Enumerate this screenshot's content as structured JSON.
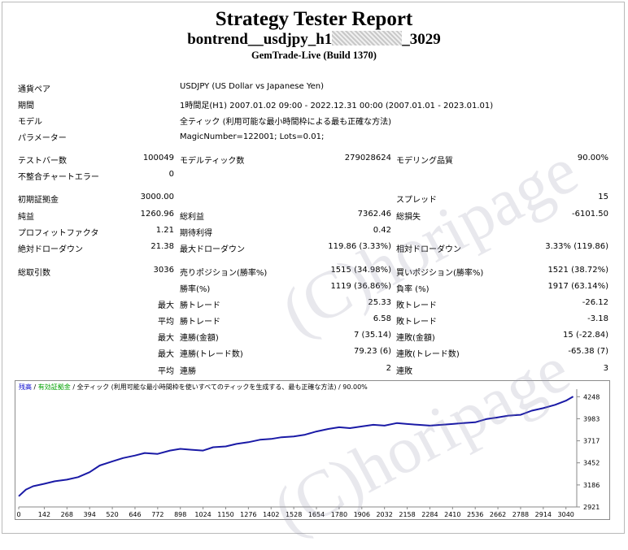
{
  "report": {
    "title": "Strategy Tester Report",
    "ea_name_prefix": "bontrend__usdjpy_h1",
    "ea_name_suffix": "_3029",
    "server": "GemTrade-Live (Build 1370)"
  },
  "info": [
    {
      "label": "通貨ペア",
      "value": "USDJPY (US Dollar vs Japanese Yen)"
    },
    {
      "label": "期間",
      "value": "1時間足(H1) 2007.01.02 09:00 - 2022.12.31 00:00 (2007.01.01 - 2023.01.01)"
    },
    {
      "label": "モデル",
      "value": "全ティック (利用可能な最小時間枠による最も正確な方法)"
    },
    {
      "label": "パラメーター",
      "value": "MagicNumber=122001; Lots=0.01;"
    }
  ],
  "stats": {
    "bars_label": "テストバー数",
    "bars_value": "100049",
    "ticks_label": "モデルティック数",
    "ticks_value": "279028624",
    "quality_label": "モデリング品質",
    "quality_value": "90.00%",
    "mismatch_label": "不整合チャートエラー",
    "mismatch_value": "0",
    "deposit_label": "初期証拠金",
    "deposit_value": "3000.00",
    "spread_label": "スプレッド",
    "spread_value": "15",
    "net_label": "純益",
    "net_value": "1260.96",
    "gross_profit_label": "総利益",
    "gross_profit_value": "7362.46",
    "gross_loss_label": "総損失",
    "gross_loss_value": "-6101.50",
    "pf_label": "プロフィットファクタ",
    "pf_value": "1.21",
    "payoff_label": "期待利得",
    "payoff_value": "0.42",
    "abs_dd_label": "絶対ドローダウン",
    "abs_dd_value": "21.38",
    "max_dd_label": "最大ドローダウン",
    "max_dd_value": "119.86 (3.33%)",
    "rel_dd_label": "相対ドローダウン",
    "rel_dd_value": "3.33% (119.86)",
    "trades_label": "総取引数",
    "trades_value": "3036",
    "short_label": "売りポジション(勝率%)",
    "short_value": "1515 (34.98%)",
    "long_label": "買いポジション(勝率%)",
    "long_value": "1521 (38.72%)",
    "win_rate_label": "勝率(%)",
    "win_rate_value": "1119 (36.86%)",
    "loss_rate_label": "負率 (%)",
    "loss_rate_value": "1917 (63.14%)",
    "max_word": "最大",
    "avg_word": "平均",
    "largest_win_label": "勝トレード",
    "largest_win_value": "25.33",
    "largest_loss_label": "敗トレード",
    "largest_loss_value": "-26.12",
    "avg_win_label": "勝トレード",
    "avg_win_value": "6.58",
    "avg_loss_label": "敗トレード",
    "avg_loss_value": "-3.18",
    "cons_win_amt_label": "連勝(金額)",
    "cons_win_amt_value": "7 (35.14)",
    "cons_loss_amt_label": "連敗(金額)",
    "cons_loss_amt_value": "15 (-22.84)",
    "cons_win_cnt_label": "連勝(トレード数)",
    "cons_win_cnt_value": "79.23 (6)",
    "cons_loss_cnt_label": "連敗(トレード数)",
    "cons_loss_cnt_value": "-65.38 (7)",
    "avg_cons_win_label": "連勝",
    "avg_cons_win_value": "2",
    "avg_cons_loss_label": "連敗",
    "avg_cons_loss_value": "3"
  },
  "watermark": {
    "text": "(C)horipage"
  },
  "chart_data": {
    "type": "line",
    "legend": {
      "balance": "残高",
      "sep1": " / ",
      "equity": "有効証拠金",
      "sep2": " / ",
      "rest": "全ティック (利用可能な最小時間枠を使いすべてのティックを生成する、最も正確な方法) / 90.00%"
    },
    "x_ticks": [
      0,
      142,
      268,
      394,
      520,
      646,
      772,
      898,
      1024,
      1150,
      1276,
      1402,
      1528,
      1654,
      1780,
      1906,
      2032,
      2158,
      2284,
      2410,
      2536,
      2662,
      2788,
      2914,
      3040
    ],
    "y_ticks": [
      2921,
      3186,
      3452,
      3717,
      3983,
      4248
    ],
    "xlim": [
      0,
      3100
    ],
    "ylim": [
      2921,
      4300
    ],
    "series": [
      {
        "color": "#1a1aa6",
        "x": [
          0,
          40,
          80,
          142,
          200,
          268,
          330,
          394,
          450,
          520,
          580,
          646,
          700,
          772,
          840,
          898,
          960,
          1024,
          1080,
          1150,
          1210,
          1276,
          1340,
          1402,
          1460,
          1528,
          1590,
          1654,
          1720,
          1780,
          1840,
          1906,
          1970,
          2032,
          2100,
          2158,
          2220,
          2284,
          2350,
          2410,
          2470,
          2536,
          2600,
          2662,
          2720,
          2788,
          2850,
          2914,
          2980,
          3040,
          3080
        ],
        "y": [
          3050,
          3130,
          3170,
          3200,
          3230,
          3250,
          3280,
          3340,
          3420,
          3470,
          3510,
          3540,
          3570,
          3560,
          3600,
          3620,
          3610,
          3600,
          3640,
          3650,
          3680,
          3700,
          3730,
          3740,
          3760,
          3770,
          3790,
          3830,
          3860,
          3880,
          3870,
          3890,
          3910,
          3900,
          3930,
          3920,
          3910,
          3900,
          3910,
          3920,
          3930,
          3940,
          3980,
          4000,
          4020,
          4030,
          4080,
          4110,
          4150,
          4200,
          4250
        ]
      }
    ]
  }
}
